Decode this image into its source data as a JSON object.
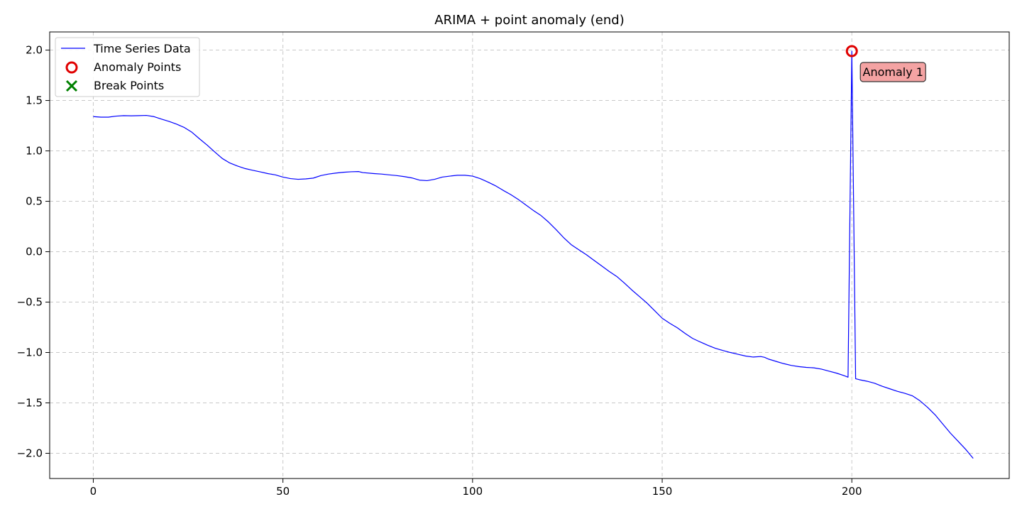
{
  "chart_data": {
    "type": "line",
    "title": "ARIMA + point anomaly (end)",
    "xlabel": "",
    "ylabel": "",
    "xlim": [
      -11.5,
      241.5
    ],
    "ylim": [
      -2.25,
      2.18
    ],
    "xticks": [
      0,
      50,
      100,
      150,
      200
    ],
    "yticks": [
      2.0,
      1.5,
      1.0,
      0.5,
      0.0,
      -0.5,
      -1.0,
      -1.5,
      -2.0
    ],
    "xtick_labels": [
      "0",
      "50",
      "100",
      "150",
      "200"
    ],
    "ytick_labels": [
      "2.0",
      "1.5",
      "1.0",
      "0.5",
      "0.0",
      "−0.5",
      "−1.0",
      "−1.5",
      "−2.0"
    ],
    "grid": true,
    "legend_position": "top-left",
    "legend": [
      {
        "label": "Time Series Data",
        "marker": "line",
        "color": "#0000ff"
      },
      {
        "label": "Anomaly Points",
        "marker": "circle",
        "color": "#e00000"
      },
      {
        "label": "Break Points",
        "marker": "x",
        "color": "#008000"
      }
    ],
    "series": [
      {
        "name": "Time Series Data",
        "color": "#0000ff",
        "points": [
          [
            0,
            1.34
          ],
          [
            2,
            1.335
          ],
          [
            4,
            1.335
          ],
          [
            6,
            1.345
          ],
          [
            8,
            1.35
          ],
          [
            10,
            1.348
          ],
          [
            12,
            1.35
          ],
          [
            14,
            1.352
          ],
          [
            16,
            1.34
          ],
          [
            18,
            1.315
          ],
          [
            20,
            1.292
          ],
          [
            22,
            1.265
          ],
          [
            24,
            1.232
          ],
          [
            26,
            1.185
          ],
          [
            28,
            1.12
          ],
          [
            30,
            1.058
          ],
          [
            32,
            0.99
          ],
          [
            34,
            0.925
          ],
          [
            36,
            0.88
          ],
          [
            38,
            0.85
          ],
          [
            40,
            0.825
          ],
          [
            42,
            0.808
          ],
          [
            44,
            0.792
          ],
          [
            46,
            0.775
          ],
          [
            48,
            0.762
          ],
          [
            50,
            0.74
          ],
          [
            52,
            0.725
          ],
          [
            54,
            0.718
          ],
          [
            56,
            0.722
          ],
          [
            58,
            0.73
          ],
          [
            60,
            0.755
          ],
          [
            62,
            0.77
          ],
          [
            64,
            0.78
          ],
          [
            66,
            0.788
          ],
          [
            68,
            0.793
          ],
          [
            70,
            0.795
          ],
          [
            71,
            0.785
          ],
          [
            74,
            0.775
          ],
          [
            76,
            0.77
          ],
          [
            78,
            0.762
          ],
          [
            80,
            0.755
          ],
          [
            82,
            0.745
          ],
          [
            84,
            0.732
          ],
          [
            86,
            0.71
          ],
          [
            88,
            0.705
          ],
          [
            90,
            0.718
          ],
          [
            92,
            0.74
          ],
          [
            94,
            0.75
          ],
          [
            96,
            0.758
          ],
          [
            98,
            0.758
          ],
          [
            100,
            0.75
          ],
          [
            102,
            0.725
          ],
          [
            104,
            0.692
          ],
          [
            106,
            0.655
          ],
          [
            108,
            0.61
          ],
          [
            110,
            0.568
          ],
          [
            112,
            0.52
          ],
          [
            114,
            0.465
          ],
          [
            116,
            0.41
          ],
          [
            118,
            0.36
          ],
          [
            120,
            0.295
          ],
          [
            122,
            0.22
          ],
          [
            124,
            0.14
          ],
          [
            126,
            0.07
          ],
          [
            128,
            0.02
          ],
          [
            130,
            -0.03
          ],
          [
            132,
            -0.085
          ],
          [
            134,
            -0.14
          ],
          [
            136,
            -0.195
          ],
          [
            138,
            -0.245
          ],
          [
            140,
            -0.31
          ],
          [
            142,
            -0.38
          ],
          [
            144,
            -0.445
          ],
          [
            146,
            -0.51
          ],
          [
            148,
            -0.585
          ],
          [
            150,
            -0.66
          ],
          [
            152,
            -0.71
          ],
          [
            154,
            -0.755
          ],
          [
            156,
            -0.81
          ],
          [
            158,
            -0.86
          ],
          [
            160,
            -0.895
          ],
          [
            162,
            -0.928
          ],
          [
            164,
            -0.958
          ],
          [
            166,
            -0.98
          ],
          [
            168,
            -1.0
          ],
          [
            170,
            -1.018
          ],
          [
            172,
            -1.035
          ],
          [
            174,
            -1.045
          ],
          [
            176,
            -1.04
          ],
          [
            177,
            -1.048
          ],
          [
            178,
            -1.065
          ],
          [
            180,
            -1.088
          ],
          [
            182,
            -1.11
          ],
          [
            184,
            -1.128
          ],
          [
            186,
            -1.14
          ],
          [
            188,
            -1.148
          ],
          [
            190,
            -1.152
          ],
          [
            192,
            -1.165
          ],
          [
            194,
            -1.185
          ],
          [
            196,
            -1.205
          ],
          [
            198,
            -1.23
          ],
          [
            199,
            -1.245
          ],
          [
            200,
            1.99
          ],
          [
            201,
            -1.26
          ],
          [
            202,
            -1.27
          ],
          [
            204,
            -1.285
          ],
          [
            206,
            -1.305
          ],
          [
            208,
            -1.335
          ],
          [
            210,
            -1.36
          ],
          [
            212,
            -1.385
          ],
          [
            214,
            -1.405
          ],
          [
            216,
            -1.43
          ],
          [
            218,
            -1.48
          ],
          [
            220,
            -1.545
          ],
          [
            222,
            -1.62
          ],
          [
            224,
            -1.71
          ],
          [
            226,
            -1.8
          ],
          [
            228,
            -1.88
          ],
          [
            230,
            -1.96
          ],
          [
            231,
            -2.005
          ],
          [
            232,
            -2.05
          ]
        ]
      }
    ],
    "anomalies": [
      {
        "x": 200,
        "y": 1.99,
        "label": "Anomaly 1"
      }
    ],
    "break_points": []
  }
}
